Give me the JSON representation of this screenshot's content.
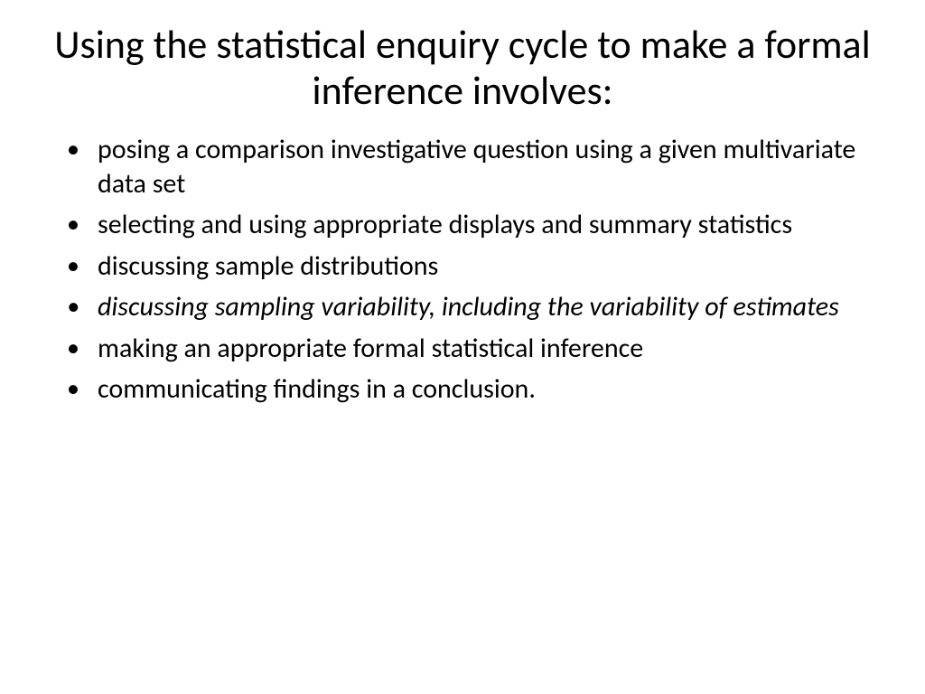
{
  "slide": {
    "title": "Using the statistical enquiry cycle to make a formal inference involves:",
    "bullets": [
      {
        "text": "posing a comparison investigative question using a given multivariate data set",
        "italic": false
      },
      {
        "text": "selecting and using appropriate displays and summary statistics",
        "italic": false
      },
      {
        "text": "discussing sample distributions",
        "italic": false
      },
      {
        "text": "discussing sampling variability, including the variability of estimates",
        "italic": true
      },
      {
        "text": "making an appropriate formal statistical inference",
        "italic": false
      },
      {
        "text": "communicating findings in a conclusion.",
        "italic": false
      }
    ],
    "title_fontsize": 44,
    "bullet_fontsize": 30,
    "text_color": "#000000",
    "background_color": "#ffffff"
  }
}
